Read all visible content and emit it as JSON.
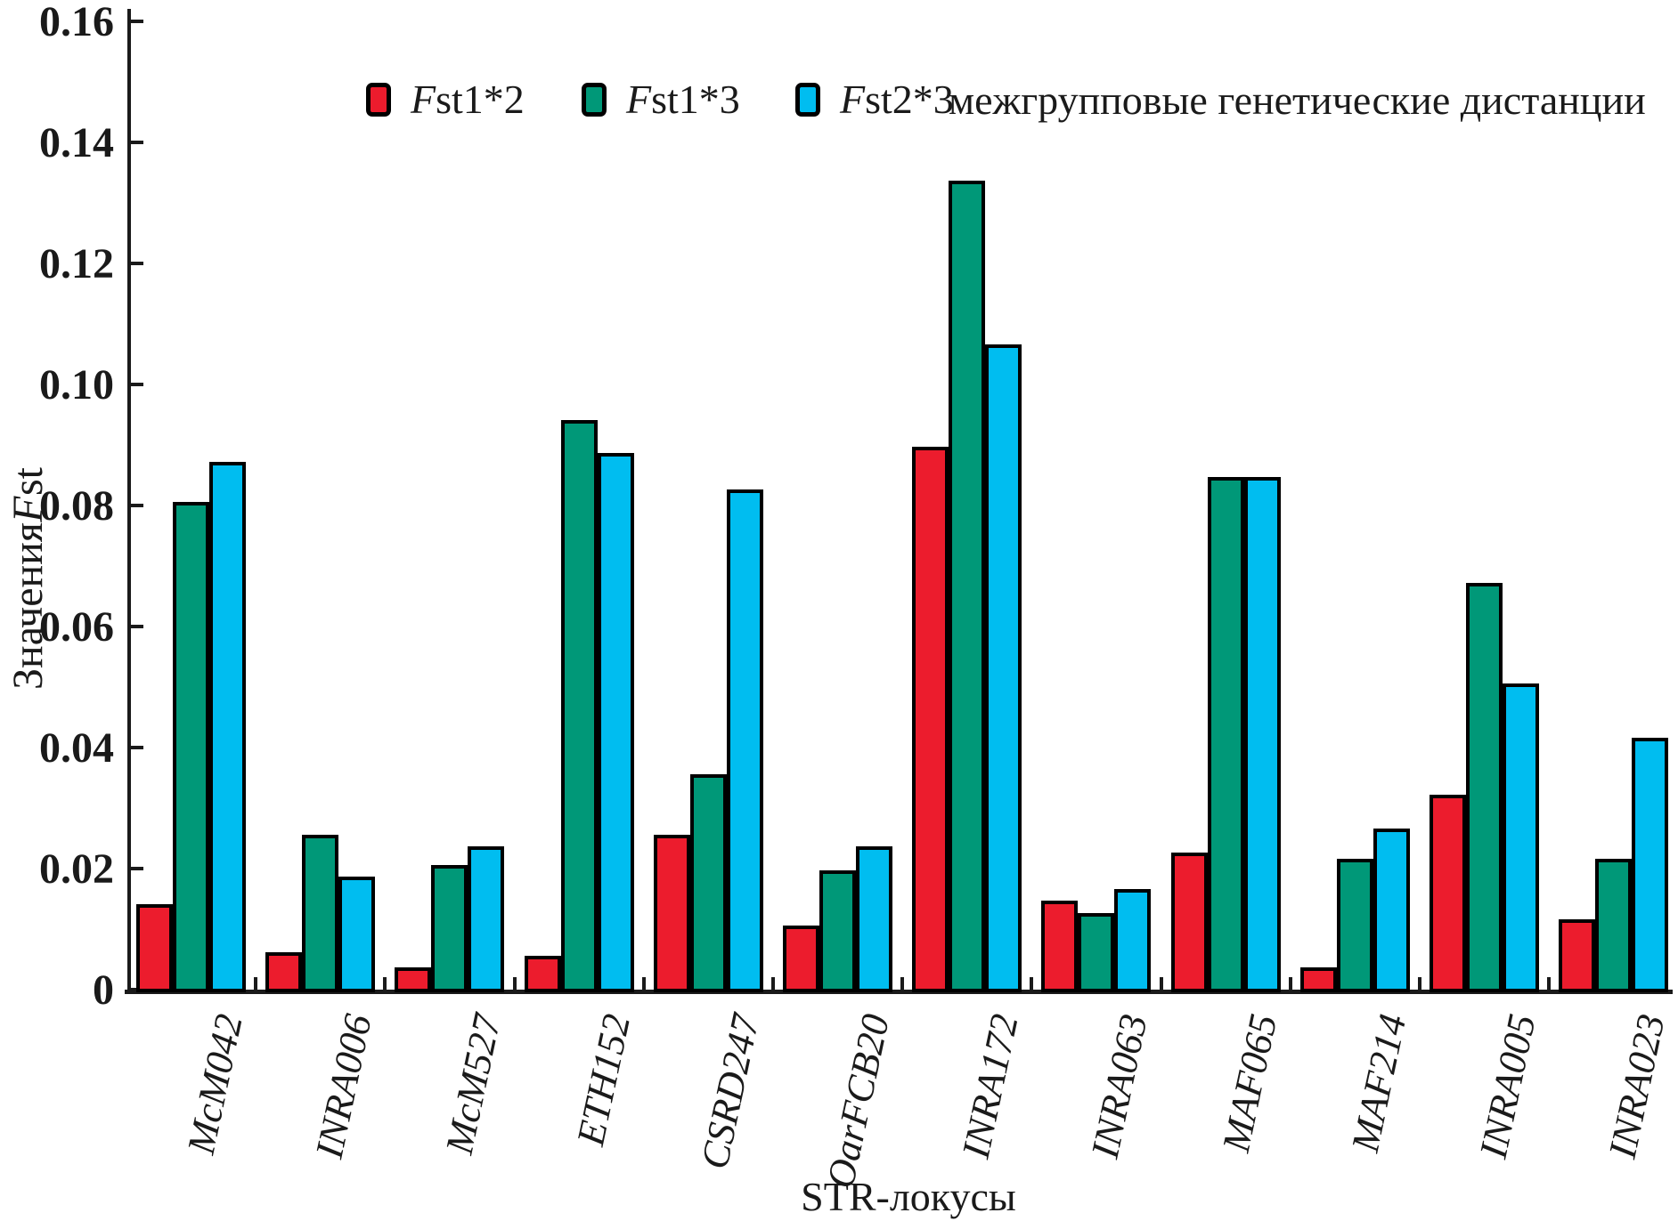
{
  "chart_data": {
    "type": "bar",
    "title": "",
    "categories": [
      "McM042",
      "INRA006",
      "McM527",
      "ETH152",
      "CSRD247",
      "OarFCB20",
      "INRA172",
      "INRA063",
      "MAF065",
      "MAF214",
      "INRA005",
      "INRA023"
    ],
    "series": [
      {
        "name": "Fst1*2",
        "color": "#ec1c2d",
        "values": [
          0.014,
          0.006,
          0.0035,
          0.0055,
          0.0255,
          0.0105,
          0.0895,
          0.0145,
          0.0225,
          0.0035,
          0.032,
          0.0115
        ]
      },
      {
        "name": "Fst1*3",
        "color": "#009878",
        "values": [
          0.0805,
          0.0255,
          0.0205,
          0.094,
          0.0355,
          0.0195,
          0.1335,
          0.0125,
          0.0845,
          0.0215,
          0.067,
          0.0215
        ]
      },
      {
        "name": "Fst2*3",
        "color": "#00bdf0",
        "values": [
          0.087,
          0.0185,
          0.0235,
          0.0885,
          0.0825,
          0.0235,
          0.1065,
          0.0165,
          0.0845,
          0.0265,
          0.0505,
          0.0415
        ]
      }
    ],
    "xlabel": "STR-локусы",
    "ylabel": "Значения Fst",
    "ylim": [
      0,
      0.16
    ],
    "yticks": [
      "0",
      "0.02",
      "0.04",
      "0.06",
      "0.08",
      "0.10",
      "0.12",
      "0.14",
      "0.16"
    ],
    "grid": false,
    "legend_position": "top",
    "legend_note": "межгрупповые генетические дистанции",
    "bar_outline_color": "#000000",
    "axis_color": "#1a1a1a"
  }
}
